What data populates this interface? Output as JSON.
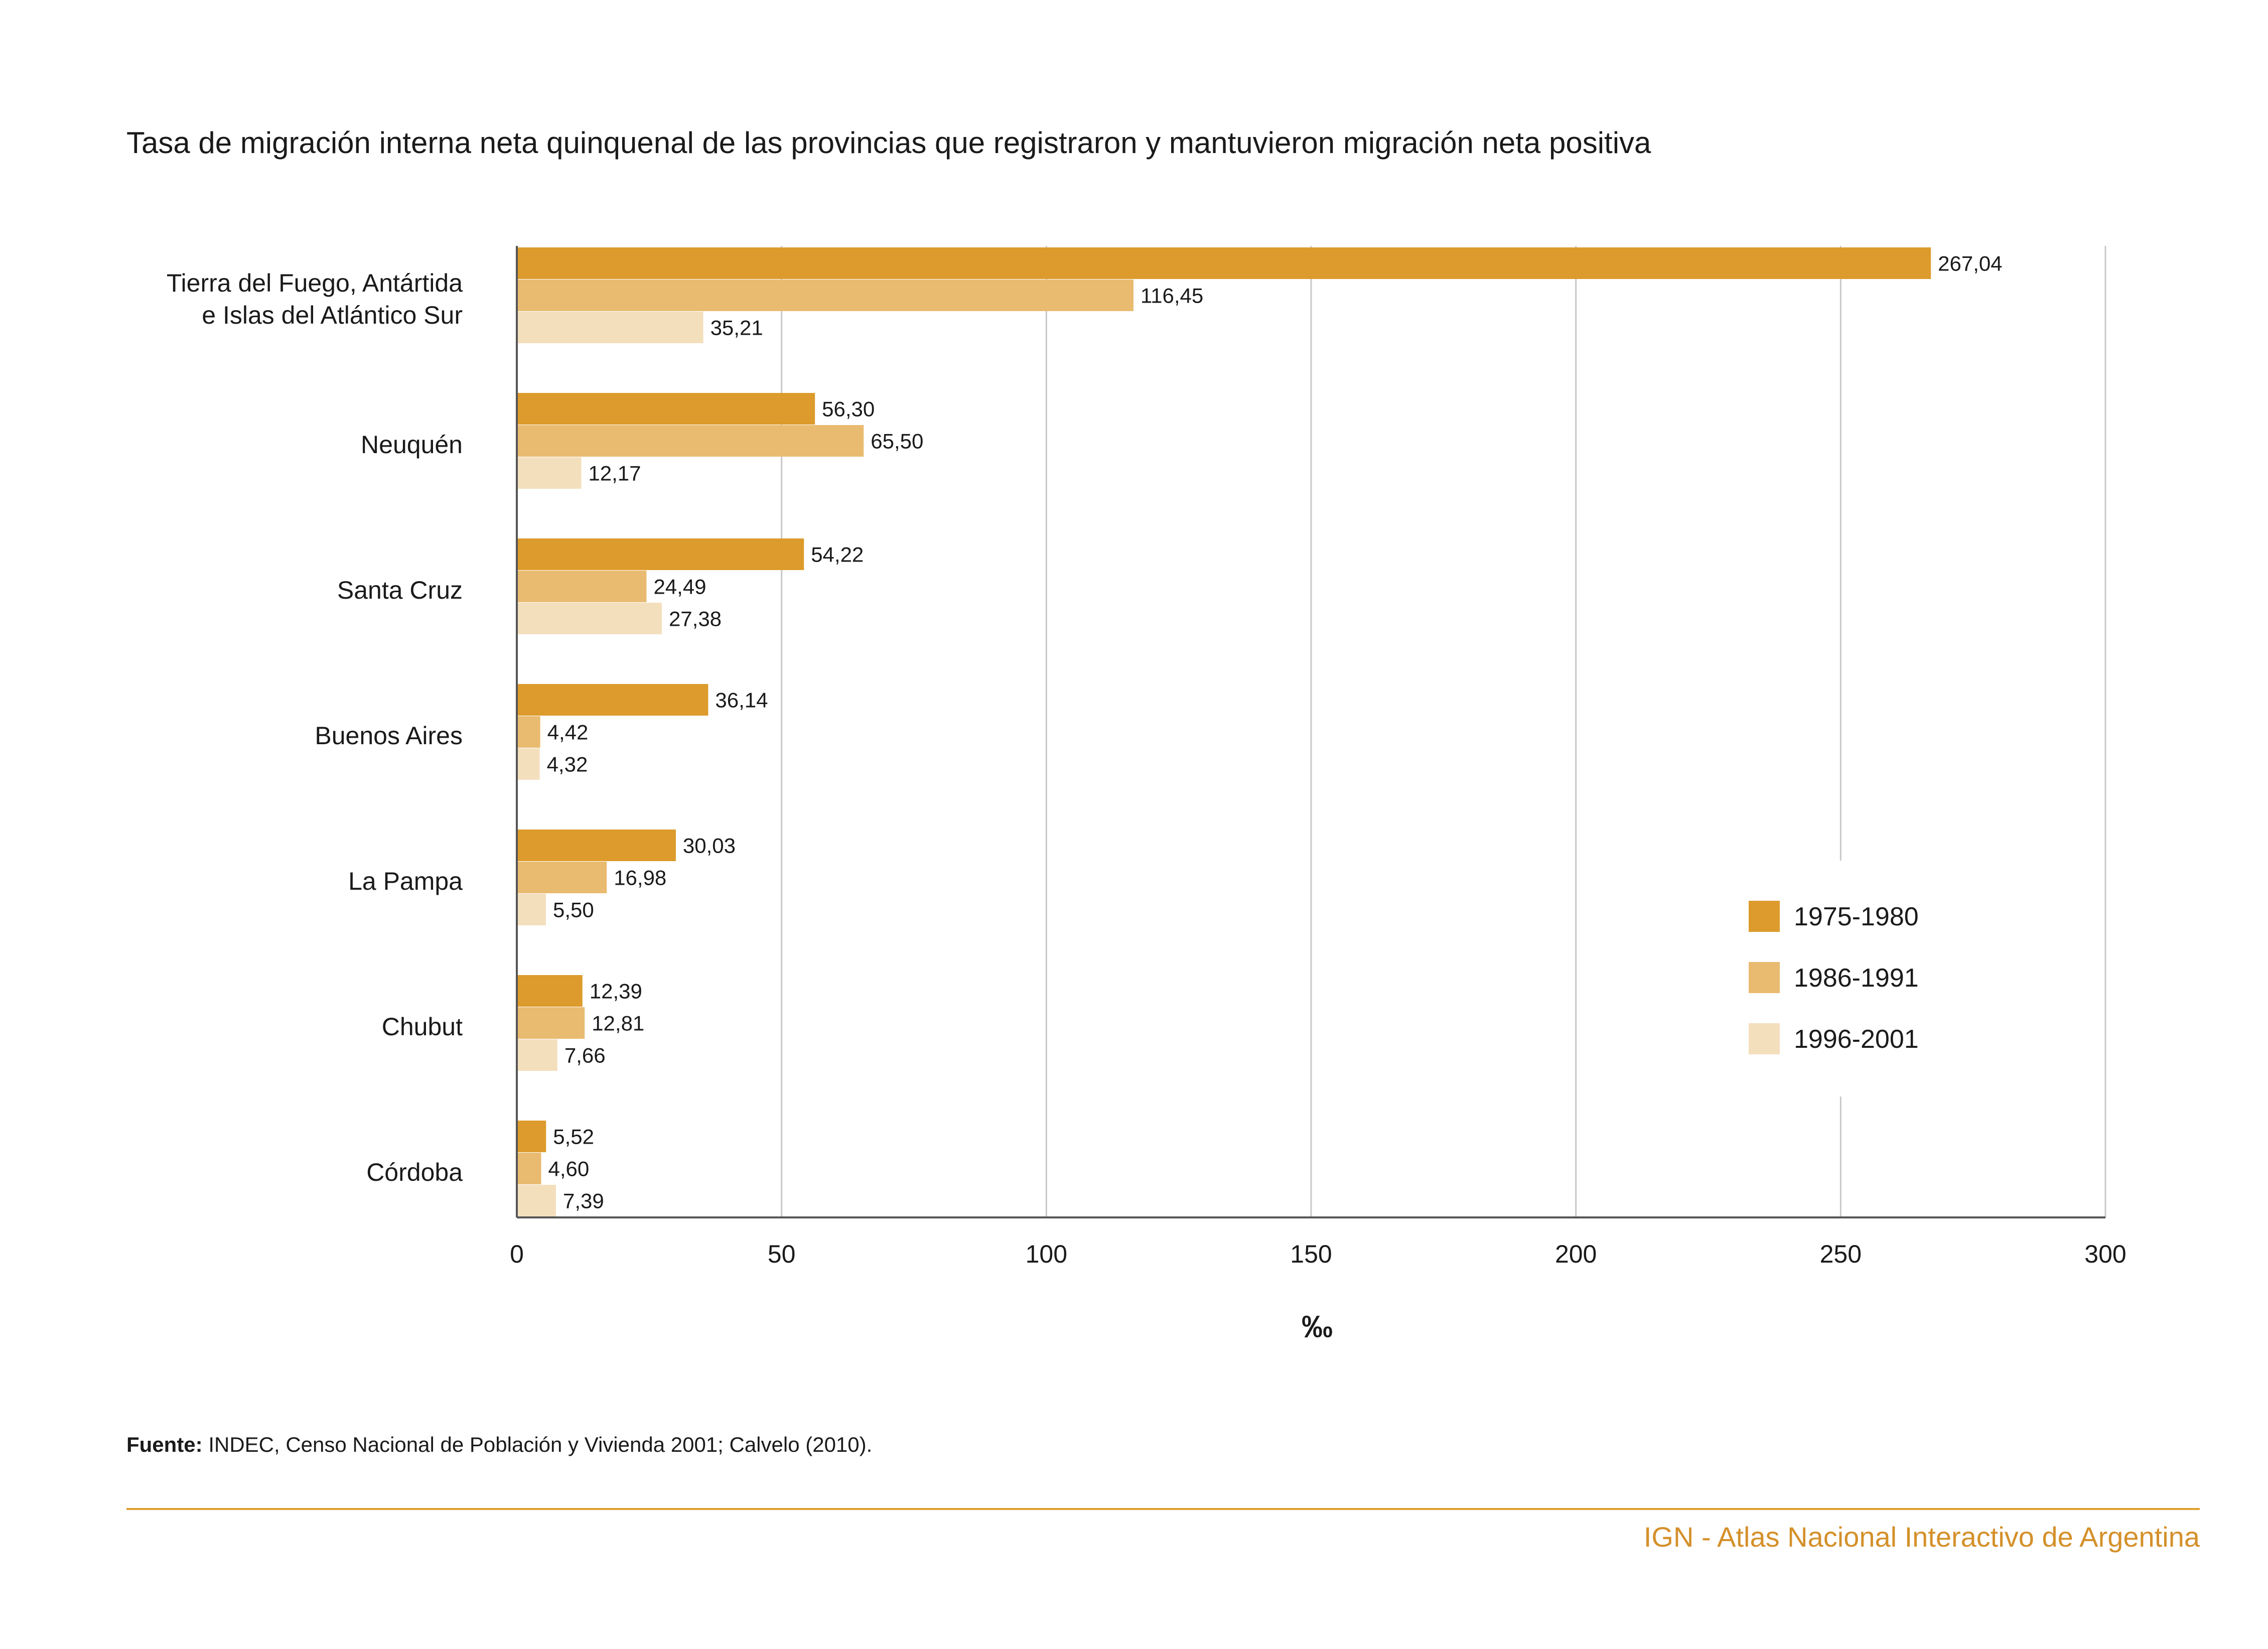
{
  "chart_data": {
    "type": "bar",
    "orientation": "horizontal",
    "title": "Tasa de migración interna neta quinquenal de las provincias que registraron y mantuvieron migración neta positiva",
    "xlabel": "‰",
    "ylabel": "",
    "xlim": [
      0,
      300
    ],
    "xticks": [
      "0",
      "50",
      "100",
      "150",
      "200",
      "250",
      "300"
    ],
    "grid": "vertical",
    "legend_position": "bottom-right",
    "categories": [
      [
        "Tierra del Fuego, Antártida",
        "e Islas del Atlántico Sur"
      ],
      [
        "Neuquén"
      ],
      [
        "Santa Cruz"
      ],
      [
        "Buenos Aires"
      ],
      [
        "La Pampa"
      ],
      [
        "Chubut"
      ],
      [
        "Córdoba"
      ]
    ],
    "series": [
      {
        "name": "1975-1980",
        "color": "#dc9b2c",
        "values": [
          267.04,
          56.3,
          54.22,
          36.14,
          30.03,
          12.39,
          5.52
        ],
        "labels": [
          "267,04",
          "56,30",
          "54,22",
          "36,14",
          "30,03",
          "12,39",
          "5,52"
        ]
      },
      {
        "name": "1986-1991",
        "color": "#e9bb70",
        "values": [
          116.45,
          65.5,
          24.49,
          4.42,
          16.98,
          12.81,
          4.6
        ],
        "labels": [
          "116,45",
          "65,50",
          "24,49",
          "4,42",
          "16,98",
          "12,81",
          "4,60"
        ]
      },
      {
        "name": "1996-2001",
        "color": "#f4dfbd",
        "values": [
          35.21,
          12.17,
          27.38,
          4.32,
          5.5,
          7.66,
          7.39
        ],
        "labels": [
          "35,21",
          "12,17",
          "27,38",
          "4,32",
          "5,50",
          "7,66",
          "7,39"
        ]
      }
    ]
  },
  "source": {
    "label": "Fuente:",
    "text": " INDEC, Censo Nacional de Población y Vivienda 2001; Calvelo (2010)."
  },
  "footer": {
    "brand": "IGN - Atlas Nacional Interactivo de Argentina"
  }
}
